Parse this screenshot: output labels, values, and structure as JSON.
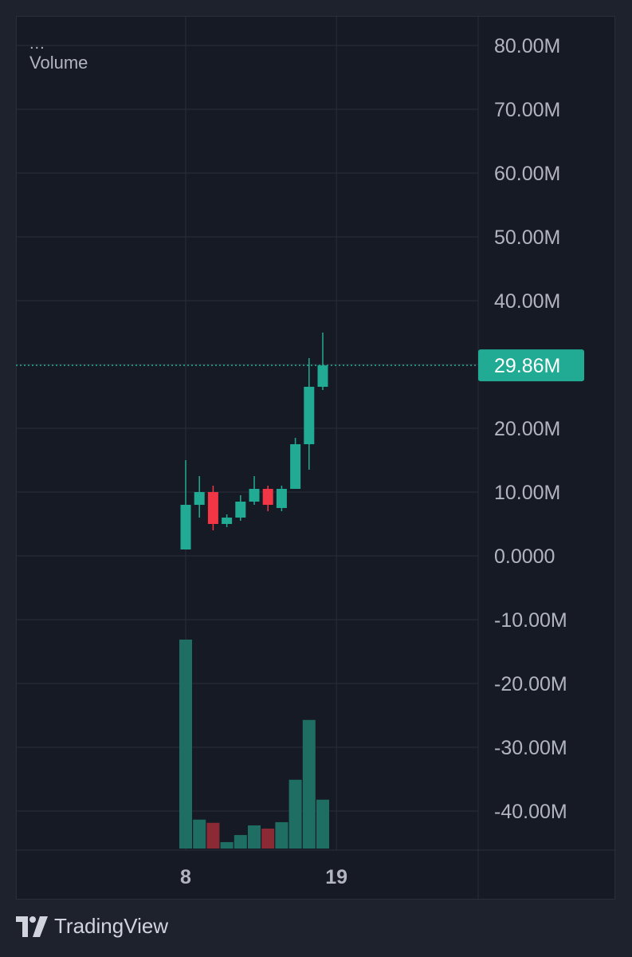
{
  "legend": {
    "menu": "...",
    "title": "Volume"
  },
  "brand": {
    "name": "TradingView",
    "logo_icon": "tradingview-logo-icon"
  },
  "colors": {
    "up": "#22ab94",
    "down": "#f23645",
    "up_volume": "#1f6e63",
    "down_volume": "#8b2a35",
    "grid": "#2a2e39",
    "axis_text": "#b2b5be",
    "price_line": "#22ab94"
  },
  "chart_data": {
    "type": "candlestick",
    "y_axis": {
      "ticks": [
        80000000,
        70000000,
        60000000,
        50000000,
        40000000,
        20000000,
        10000000,
        0,
        -10000000,
        -20000000,
        -30000000,
        -40000000
      ],
      "tick_labels": [
        "80.00M",
        "70.00M",
        "60.00M",
        "50.00M",
        "40.00M",
        "20.00M",
        "10.00M",
        "0.0000",
        "-10.00M",
        "-20.00M",
        "-30.00M",
        "-40.00M"
      ],
      "range": [
        -46000000,
        84000000
      ]
    },
    "x_axis": {
      "tick_labels": [
        "8",
        "19"
      ],
      "tick_index": [
        0,
        11
      ]
    },
    "last_value": 29860000,
    "last_value_label": "29.86M",
    "candles": [
      {
        "open": 1000000,
        "high": 15000000,
        "low": 1000000,
        "close": 8000000,
        "volume": 32500000
      },
      {
        "open": 8000000,
        "high": 12500000,
        "low": 6000000,
        "close": 10000000,
        "volume": 4500000
      },
      {
        "open": 10000000,
        "high": 11000000,
        "low": 4000000,
        "close": 5000000,
        "volume": 4000000
      },
      {
        "open": 5000000,
        "high": 6500000,
        "low": 4500000,
        "close": 6000000,
        "volume": 1000000
      },
      {
        "open": 6000000,
        "high": 9500000,
        "low": 5500000,
        "close": 8500000,
        "volume": 2100000
      },
      {
        "open": 8500000,
        "high": 12500000,
        "low": 8000000,
        "close": 10500000,
        "volume": 3600000
      },
      {
        "open": 10500000,
        "high": 11000000,
        "low": 7000000,
        "close": 8000000,
        "volume": 3100000
      },
      {
        "open": 7500000,
        "high": 11000000,
        "low": 7000000,
        "close": 10500000,
        "volume": 4100000
      },
      {
        "open": 10500000,
        "high": 18500000,
        "low": 10500000,
        "close": 17500000,
        "volume": 10700000
      },
      {
        "open": 17500000,
        "high": 31000000,
        "low": 13500000,
        "close": 26500000,
        "volume": 20000000
      },
      {
        "open": 26500000,
        "high": 35000000,
        "low": 26000000,
        "close": 29860000,
        "volume": 7600000
      }
    ],
    "volume_scale_max": 32500000
  }
}
